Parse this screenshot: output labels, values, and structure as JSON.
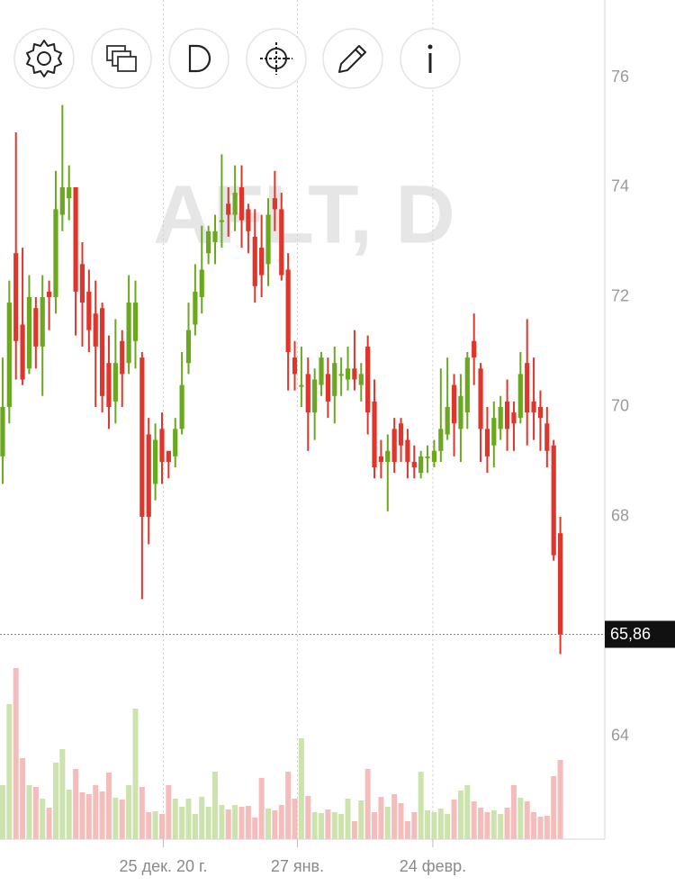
{
  "chart_data": {
    "type": "candlestick",
    "watermark": "AFLT, D",
    "xlim": [
      -0.4,
      90.7
    ],
    "ylim": [
      62.13,
      77.41
    ],
    "yticks": [
      64,
      68,
      70,
      72,
      74,
      76
    ],
    "xticks": [
      {
        "value": 24.2,
        "label": "25 дек. 20 г."
      },
      {
        "value": 44.4,
        "label": "27 янв."
      },
      {
        "value": 64.8,
        "label": "24 февр."
      }
    ],
    "last_price": {
      "value": 65.86,
      "label": "65,86"
    },
    "up_color": "#6aa81e",
    "down_color": "#e0352b",
    "up_volume_color": "#cde3ae",
    "down_volume_color": "#f5bcbc",
    "open": [
      69.1,
      70.0,
      72.8,
      71.5,
      70.7,
      71.8,
      71.1,
      72.1,
      72.0,
      73.5,
      73.8,
      74.0,
      72.6,
      72.1,
      71.7,
      71.8,
      70.8,
      70.1,
      71.2,
      70.8,
      71.2,
      70.9,
      69.5,
      68.6,
      69.6,
      69.2,
      69.1,
      69.6,
      70.8,
      71.5,
      72.0,
      72.8,
      73.0,
      73.4,
      73.7,
      73.5,
      74.0,
      73.6,
      73.1,
      72.9,
      72.6,
      73.8,
      73.6,
      72.5,
      70.9,
      70.4,
      70.6,
      69.9,
      70.4,
      70.6,
      70.2,
      70.6,
      70.5,
      70.7,
      70.4,
      71.1,
      70.1,
      69.1,
      69.0,
      69.6,
      69.7,
      69.4,
      69.0,
      68.8,
      69.1,
      69.0,
      69.2,
      69.5,
      70.4,
      69.6,
      69.9,
      71.2,
      70.7,
      69.6,
      69.3,
      69.6,
      70.1,
      69.9,
      69.8,
      70.8,
      70.1,
      70.0,
      69.7,
      69.3,
      67.7
    ],
    "high": [
      70.9,
      72.3,
      75.0,
      72.9,
      72.4,
      72.0,
      72.4,
      72.3,
      74.3,
      75.5,
      74.4,
      74.0,
      73.0,
      72.5,
      72.3,
      71.9,
      71.3,
      71.6,
      71.4,
      72.4,
      72.3,
      71.0,
      69.8,
      69.7,
      69.9,
      69.2,
      69.8,
      71.0,
      71.9,
      72.6,
      73.3,
      73.3,
      73.5,
      74.6,
      74.0,
      74.4,
      74.4,
      73.7,
      73.6,
      73.5,
      73.8,
      74.3,
      73.9,
      72.8,
      71.2,
      71.1,
      70.9,
      70.7,
      71.0,
      70.9,
      71.1,
      70.9,
      71.1,
      71.4,
      70.8,
      71.3,
      70.5,
      69.4,
      69.5,
      69.8,
      69.8,
      69.6,
      69.3,
      69.2,
      69.3,
      69.4,
      70.7,
      70.9,
      70.6,
      70.6,
      71.0,
      71.7,
      70.8,
      70.0,
      70.1,
      70.2,
      70.5,
      70.1,
      71.0,
      71.6,
      70.9,
      70.3,
      70.0,
      69.4,
      68.0
    ],
    "low": [
      68.6,
      69.7,
      70.5,
      70.4,
      70.6,
      70.7,
      70.2,
      71.4,
      71.7,
      73.2,
      73.4,
      71.3,
      71.1,
      71.0,
      70.0,
      69.9,
      69.6,
      69.7,
      70.0,
      70.6,
      70.7,
      66.5,
      67.5,
      68.3,
      68.6,
      68.7,
      68.9,
      69.5,
      70.6,
      71.3,
      71.7,
      72.6,
      72.6,
      72.9,
      73.1,
      73.2,
      72.9,
      72.8,
      71.9,
      72.0,
      72.2,
      73.2,
      72.3,
      70.3,
      70.3,
      70.0,
      69.2,
      69.4,
      70.2,
      69.8,
      69.7,
      70.2,
      70.3,
      70.3,
      70.1,
      69.5,
      68.7,
      68.7,
      68.1,
      68.8,
      69.0,
      68.7,
      68.7,
      68.7,
      68.8,
      68.9,
      69.0,
      69.4,
      69.1,
      69.0,
      69.6,
      70.4,
      69.0,
      68.8,
      68.9,
      69.4,
      69.2,
      69.2,
      69.7,
      69.3,
      69.4,
      69.2,
      68.9,
      67.2,
      65.5
    ],
    "close": [
      70.0,
      71.9,
      71.2,
      70.5,
      72.0,
      71.1,
      72.0,
      72.0,
      73.6,
      74.0,
      74.0,
      72.1,
      71.9,
      71.4,
      71.1,
      70.2,
      70.0,
      70.8,
      70.6,
      71.9,
      71.9,
      68.0,
      68.0,
      69.4,
      69.0,
      69.0,
      69.6,
      70.4,
      71.4,
      72.1,
      72.5,
      73.2,
      73.2,
      73.4,
      73.5,
      73.9,
      73.4,
      73.2,
      72.2,
      72.4,
      73.5,
      73.6,
      72.4,
      71.0,
      70.6,
      70.4,
      69.9,
      70.5,
      70.9,
      70.1,
      70.8,
      70.6,
      70.7,
      70.5,
      70.6,
      69.9,
      68.9,
      69.0,
      69.2,
      69.0,
      69.3,
      69.0,
      68.9,
      69.1,
      69.1,
      69.2,
      69.6,
      70.0,
      69.7,
      70.2,
      70.9,
      70.9,
      69.6,
      69.1,
      69.8,
      70.0,
      69.6,
      69.7,
      70.6,
      69.9,
      69.9,
      69.8,
      69.2,
      67.3,
      65.86
    ],
    "volumes": [
      60,
      150,
      190,
      90,
      60,
      58,
      45,
      35,
      85,
      100,
      55,
      78,
      52,
      50,
      60,
      53,
      74,
      46,
      44,
      60,
      145,
      58,
      30,
      31,
      28,
      60,
      45,
      36,
      45,
      28,
      47,
      36,
      75,
      38,
      33,
      38,
      36,
      37,
      24,
      68,
      34,
      32,
      38,
      75,
      45,
      112,
      48,
      30,
      29,
      33,
      30,
      28,
      45,
      20,
      43,
      78,
      30,
      47,
      36,
      50,
      40,
      20,
      30,
      75,
      32,
      30,
      34,
      28,
      44,
      54,
      60,
      42,
      35,
      30,
      32,
      28,
      35,
      60,
      46,
      42,
      30,
      25,
      26,
      70,
      88
    ]
  }
}
